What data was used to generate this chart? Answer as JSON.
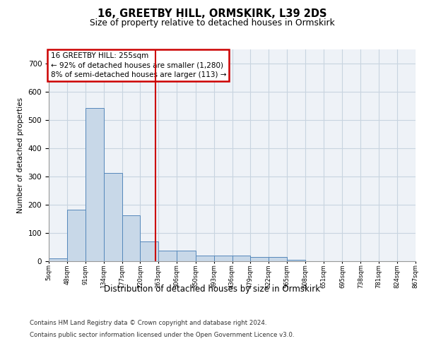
{
  "title1": "16, GREETBY HILL, ORMSKIRK, L39 2DS",
  "title2": "Size of property relative to detached houses in Ormskirk",
  "xlabel": "Distribution of detached houses by size in Ormskirk",
  "ylabel": "Number of detached properties",
  "bin_edges": [
    5,
    48,
    91,
    134,
    177,
    220,
    263,
    306,
    350,
    393,
    436,
    479,
    522,
    565,
    608,
    651,
    695,
    738,
    781,
    824,
    867
  ],
  "bar_heights": [
    10,
    183,
    543,
    313,
    163,
    70,
    37,
    37,
    20,
    20,
    20,
    15,
    15,
    5,
    0,
    0,
    0,
    0,
    0,
    0
  ],
  "bar_color": "#c8d8e8",
  "bar_edge_color": "#5588bb",
  "vline_x": 255,
  "vline_color": "#cc0000",
  "annotation_text": "16 GREETBY HILL: 255sqm\n← 92% of detached houses are smaller (1,280)\n8% of semi-detached houses are larger (113) →",
  "annotation_box_color": "#cc0000",
  "ylim": [
    0,
    750
  ],
  "yticks": [
    0,
    100,
    200,
    300,
    400,
    500,
    600,
    700
  ],
  "footer1": "Contains HM Land Registry data © Crown copyright and database right 2024.",
  "footer2": "Contains public sector information licensed under the Open Government Licence v3.0.",
  "bg_color": "#eef2f7",
  "grid_color": "#c8d4e0"
}
